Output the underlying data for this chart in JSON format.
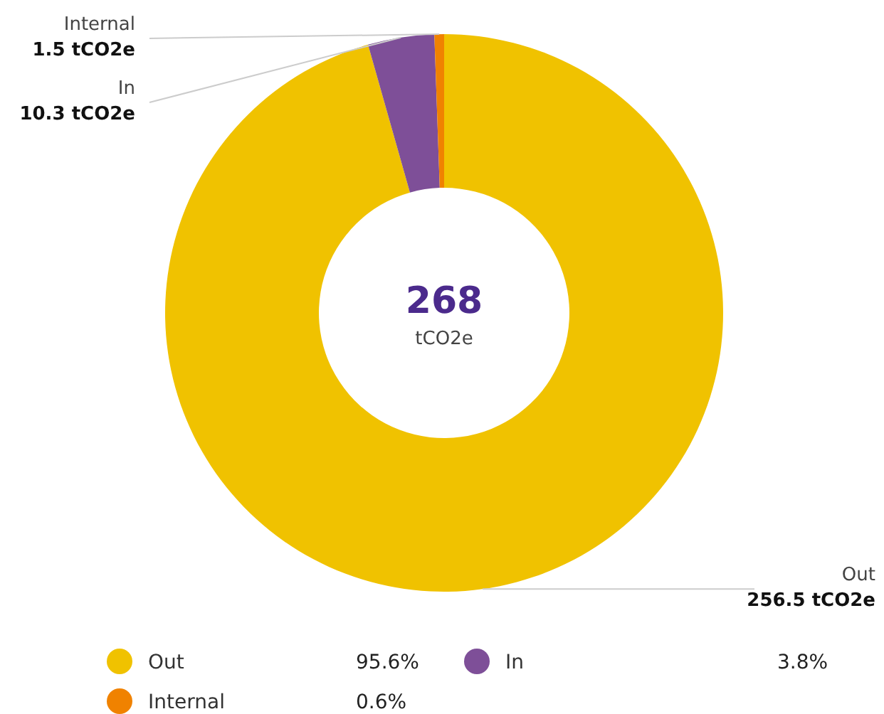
{
  "chart_data": {
    "type": "donut",
    "title": "268",
    "subtitle": "tCO2e",
    "categories": [
      "Out",
      "In",
      "Internal"
    ],
    "values": [
      256.5,
      10.3,
      1.5
    ],
    "colors": [
      "#f0c200",
      "#7e4f98",
      "#f08200"
    ],
    "value_labels": [
      "256.5 tCO2e",
      "10.3 tCO2e",
      "1.5 tCO2e"
    ],
    "legend": "bottom",
    "annotations": [
      {
        "text": "95.6%",
        "x": "Out"
      },
      {
        "text": "3.8%",
        "x": "In"
      },
      {
        "text": "0.6%",
        "x": "Internal"
      }
    ]
  }
}
